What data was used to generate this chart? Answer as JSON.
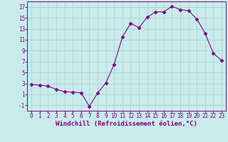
{
  "x": [
    0,
    1,
    2,
    3,
    4,
    5,
    6,
    7,
    8,
    9,
    10,
    11,
    12,
    13,
    14,
    15,
    16,
    17,
    18,
    19,
    20,
    21,
    22,
    23
  ],
  "y": [
    2.8,
    2.7,
    2.5,
    1.9,
    1.5,
    1.4,
    1.3,
    -1.2,
    1.2,
    3.1,
    6.5,
    11.5,
    14.0,
    13.2,
    15.1,
    16.1,
    16.1,
    17.1,
    16.5,
    16.3,
    14.8,
    12.2,
    8.5,
    7.2
  ],
  "line_color": "#800080",
  "marker": "D",
  "marker_size": 2.5,
  "bg_color": "#c8ecec",
  "grid_color": "#aacece",
  "xlabel": "Windchill (Refroidissement éolien,°C)",
  "tick_color": "#800080",
  "ylim": [
    -2,
    18
  ],
  "yticks": [
    -1,
    1,
    3,
    5,
    7,
    9,
    11,
    13,
    15,
    17
  ],
  "xticks": [
    0,
    1,
    2,
    3,
    4,
    5,
    6,
    7,
    8,
    9,
    10,
    11,
    12,
    13,
    14,
    15,
    16,
    17,
    18,
    19,
    20,
    21,
    22,
    23
  ],
  "spine_color": "#800080",
  "tick_fontsize": 5.5,
  "xlabel_fontsize": 6.5
}
